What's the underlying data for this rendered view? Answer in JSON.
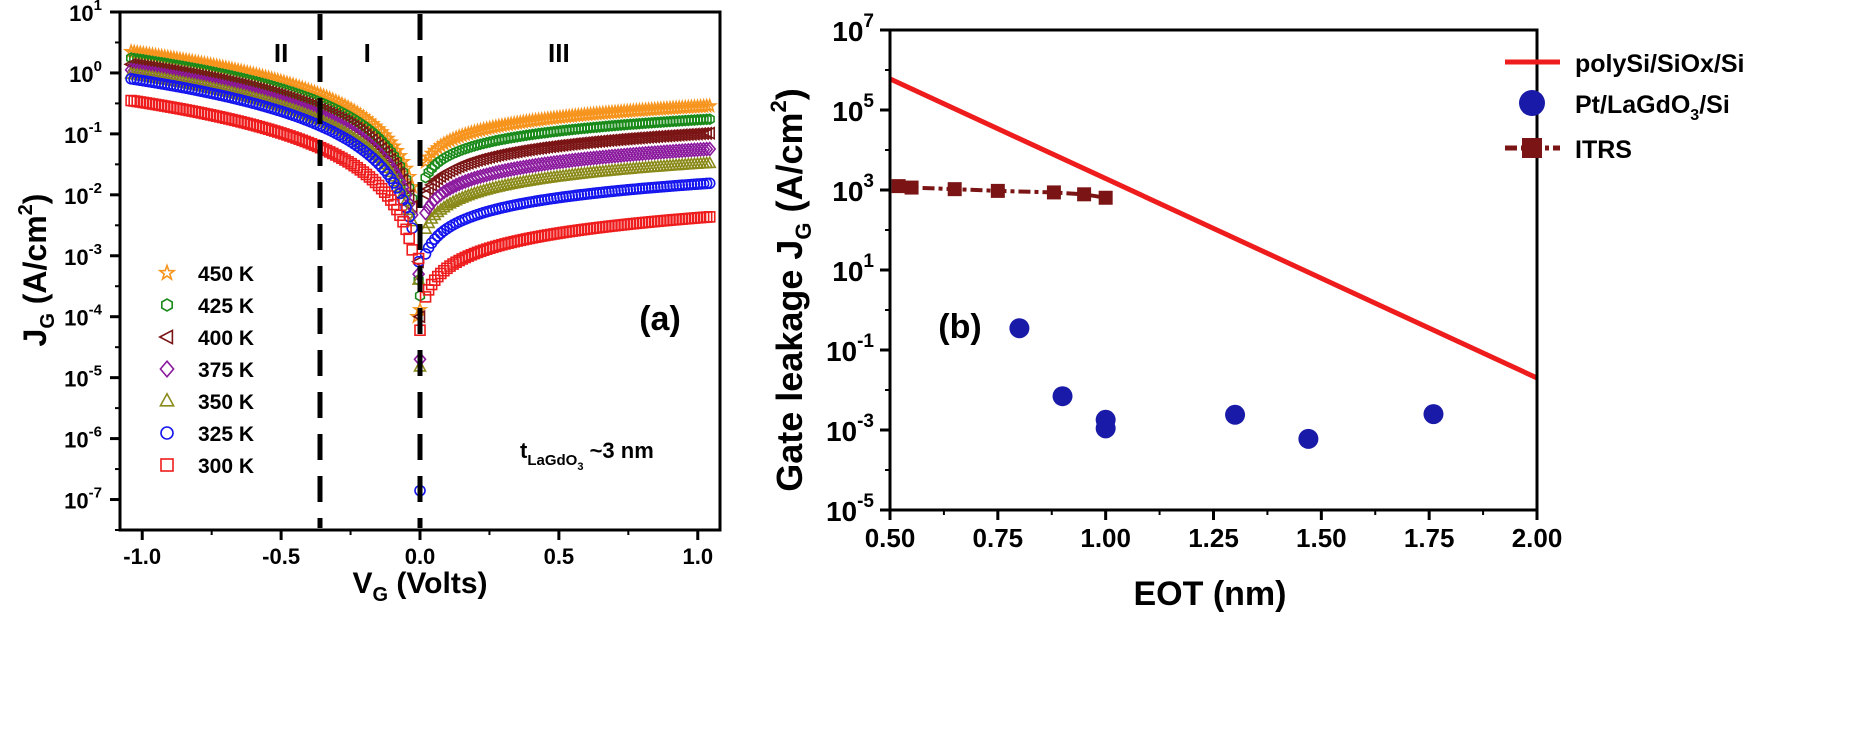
{
  "chart_data": [
    {
      "id": "a",
      "type": "scatter",
      "panel_label": "(a)",
      "xlabel_main": "V",
      "xlabel_sub": "G",
      "xlabel_rest": " (Volts)",
      "ylabel_main": "J",
      "ylabel_sub": "G",
      "ylabel_rest": " (A/cm",
      "ylabel_sup": "2",
      "ylabel_close": ")",
      "xlim": [
        -1.08,
        1.08
      ],
      "ylim_log10": [
        -7.5,
        1
      ],
      "yscale": "log",
      "x_ticks": [
        {
          "value": -1.0,
          "label": "-1.0"
        },
        {
          "value": -0.5,
          "label": "-0.5"
        },
        {
          "value": 0.0,
          "label": "0.0"
        },
        {
          "value": 0.5,
          "label": "0.5"
        },
        {
          "value": 1.0,
          "label": "1.0"
        }
      ],
      "y_ticks": [
        {
          "exp": 1,
          "base": "10",
          "sup": "1"
        },
        {
          "exp": 0,
          "base": "10",
          "sup": "0"
        },
        {
          "exp": -1,
          "base": "10",
          "sup": "-1"
        },
        {
          "exp": -2,
          "base": "10",
          "sup": "-2"
        },
        {
          "exp": -3,
          "base": "10",
          "sup": "-3"
        },
        {
          "exp": -4,
          "base": "10",
          "sup": "-4"
        },
        {
          "exp": -5,
          "base": "10",
          "sup": "-5"
        },
        {
          "exp": -6,
          "base": "10",
          "sup": "-6"
        },
        {
          "exp": -7,
          "base": "10",
          "sup": "-7"
        }
      ],
      "vlines": [
        -0.36,
        0.0
      ],
      "regions": [
        {
          "label": "II",
          "x": -0.5
        },
        {
          "label": "I",
          "x": -0.19
        },
        {
          "label": "III",
          "x": 0.5
        }
      ],
      "annotation": {
        "main": "t",
        "sub": "LaGdO",
        "sub2": "3",
        "rest": " ~3 nm"
      },
      "legend_position": "bottom-left",
      "series": [
        {
          "name": "450 K",
          "marker": "star",
          "color": "#f7941d",
          "neg_at_1": 2.1,
          "neg_slope": 1.55,
          "neg_a": 0.011,
          "pos_at_1": 0.28,
          "pos_slope": 0.6,
          "pos_a": 0.011,
          "dip": [
            {
              "x": -0.01,
              "v": 0.0001
            },
            {
              "x": 0.0,
              "v": 0.00013
            }
          ]
        },
        {
          "name": "425 K",
          "marker": "hexagon",
          "color": "#1a8a1a",
          "neg_at_1": 1.65,
          "neg_slope": 1.6,
          "neg_a": 0.01,
          "pos_at_1": 0.17,
          "pos_slope": 0.62,
          "pos_a": 0.01,
          "dip": [
            {
              "x": -0.005,
              "v": 0.0004
            },
            {
              "x": 0.0,
              "v": 0.00022
            }
          ]
        },
        {
          "name": "400 K",
          "marker": "triangle-left",
          "color": "#7b1515",
          "neg_at_1": 1.3,
          "neg_slope": 1.62,
          "neg_a": 0.01,
          "pos_at_1": 0.1,
          "pos_slope": 0.65,
          "pos_a": 0.01,
          "dip": [
            {
              "x": -0.005,
              "v": 0.0008
            },
            {
              "x": 0.0,
              "v": 0.0001
            }
          ]
        },
        {
          "name": "375 K",
          "marker": "diamond",
          "color": "#8b1a9e",
          "neg_at_1": 1.05,
          "neg_slope": 1.65,
          "neg_a": 0.01,
          "pos_at_1": 0.055,
          "pos_slope": 0.68,
          "pos_a": 0.01,
          "dip": [
            {
              "x": -0.005,
              "v": 0.0005
            },
            {
              "x": 0.0,
              "v": 2e-05
            }
          ]
        },
        {
          "name": "350 K",
          "marker": "triangle-up",
          "color": "#8a8a1a",
          "neg_at_1": 0.9,
          "neg_slope": 1.68,
          "neg_a": 0.01,
          "pos_at_1": 0.032,
          "pos_slope": 0.7,
          "pos_a": 0.01,
          "dip": [
            {
              "x": -0.005,
              "v": 0.0004
            },
            {
              "x": 0.0,
              "v": 1.5e-05
            }
          ]
        },
        {
          "name": "325 K",
          "marker": "circle",
          "color": "#1515ee",
          "neg_at_1": 0.75,
          "neg_slope": 1.7,
          "neg_a": 0.01,
          "pos_at_1": 0.015,
          "pos_slope": 0.75,
          "pos_a": 0.01,
          "dip": [
            {
              "x": -0.005,
              "v": 0.0008
            },
            {
              "x": 0.0,
              "v": 1.4e-07
            }
          ]
        },
        {
          "name": "300 K",
          "marker": "square",
          "color": "#ee1c1c",
          "neg_at_1": 0.33,
          "neg_slope": 1.7,
          "neg_a": 0.01,
          "pos_at_1": 0.0042,
          "pos_slope": 0.85,
          "pos_a": 0.01,
          "dip": [
            {
              "x": -0.005,
              "v": 0.0009
            },
            {
              "x": 0.0,
              "v": 6e-05
            }
          ]
        }
      ]
    },
    {
      "id": "b",
      "type": "line",
      "panel_label": "(b)",
      "xlabel": "EOT (nm)",
      "ylabel_main": "Gate leakage J",
      "ylabel_sub": "G",
      "ylabel_rest": " (A/cm",
      "ylabel_sup": "2",
      "ylabel_close": ")",
      "xlim": [
        0.5,
        2.0
      ],
      "ylim_log10": [
        -5,
        7
      ],
      "yscale": "log",
      "x_ticks": [
        {
          "value": 0.5,
          "label": "0.50"
        },
        {
          "value": 0.75,
          "label": "0.75"
        },
        {
          "value": 1.0,
          "label": "1.00"
        },
        {
          "value": 1.25,
          "label": "1.25"
        },
        {
          "value": 1.5,
          "label": "1.50"
        },
        {
          "value": 1.75,
          "label": "1.75"
        },
        {
          "value": 2.0,
          "label": "2.00"
        }
      ],
      "y_ticks": [
        {
          "exp": 7,
          "base": "10",
          "sup": "7"
        },
        {
          "exp": 5,
          "base": "10",
          "sup": "5"
        },
        {
          "exp": 3,
          "base": "10",
          "sup": "3"
        },
        {
          "exp": 1,
          "base": "10",
          "sup": "1"
        },
        {
          "exp": -1,
          "base": "10",
          "sup": "-1"
        },
        {
          "exp": -3,
          "base": "10",
          "sup": "-3"
        },
        {
          "exp": -5,
          "base": "10",
          "sup": "-5"
        }
      ],
      "legend_position": "top-right",
      "series": [
        {
          "name": "polySi/SiOx/Si",
          "style": "line",
          "color": "#ee1c1c",
          "x": [
            0.5,
            2.0
          ],
          "y": [
            600000,
            0.02
          ]
        },
        {
          "name_main": "Pt/LaGdO",
          "name_sub": "3",
          "name_rest": "/Si",
          "style": "scatter",
          "color": "#1a1aa8",
          "x": [
            0.8,
            0.9,
            1.0,
            1.0,
            1.3,
            1.47,
            1.76
          ],
          "y": [
            0.35,
            0.007,
            0.0018,
            0.0011,
            0.0024,
            0.0006,
            0.0025
          ]
        },
        {
          "name": "ITRS",
          "style": "line-square",
          "color": "#7b1515",
          "x": [
            0.52,
            0.55,
            0.65,
            0.75,
            0.88,
            0.95,
            1.0
          ],
          "y": [
            1250,
            1150,
            1050,
            950,
            870,
            780,
            640
          ]
        }
      ]
    }
  ]
}
